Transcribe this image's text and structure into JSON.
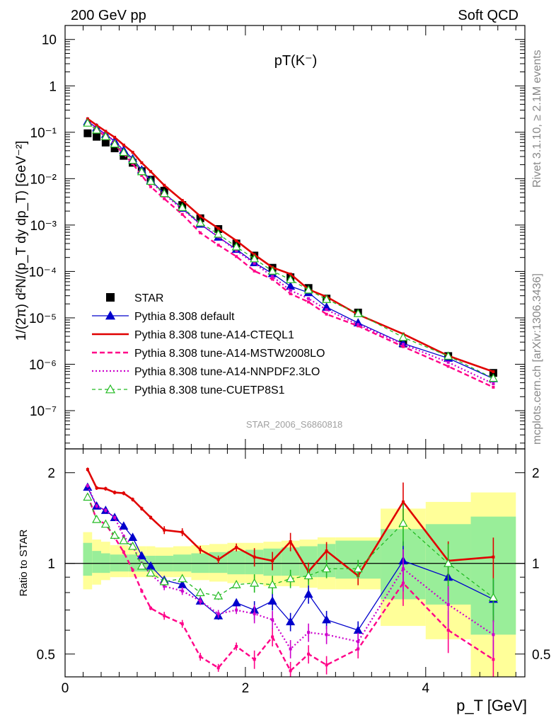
{
  "header": {
    "left": "200 GeV pp",
    "right": "Soft QCD"
  },
  "side_text": {
    "rivet": "Rivet 3.1.10, ≥ 2.1M events",
    "mcplots": "mcplots.cern.ch [arXiv:1306.3436]"
  },
  "colors": {
    "star": "#000000",
    "default": "#0000cc",
    "cteql1": "#e00000",
    "mstw": "#ff0088",
    "nnpdf": "#cc00cc",
    "cuetp8s1": "#22bb22",
    "band_outer": "#ffff99",
    "band_inner": "#99ee99"
  },
  "chart_data": [
    {
      "type": "line",
      "title": "pT(K⁻)",
      "watermark": "STAR_2006_S6860818",
      "ylabel": "1/(2π) d²N/(p_T dy dp_T) [GeV⁻²]",
      "xlabel": "",
      "yscale": "log",
      "xlim": [
        0,
        5.1
      ],
      "ylim": [
        1.5e-08,
        20
      ],
      "ytick_labels": [
        "10⁻⁷",
        "10⁻⁶",
        "10⁻⁵",
        "10⁻⁴",
        "10⁻³",
        "10⁻²",
        "10⁻¹",
        "1",
        "10"
      ],
      "legend_position": "bottom-left",
      "x": [
        0.25,
        0.35,
        0.45,
        0.55,
        0.65,
        0.75,
        0.85,
        0.95,
        1.1,
        1.3,
        1.5,
        1.7,
        1.9,
        2.1,
        2.3,
        2.5,
        2.7,
        2.9,
        3.25,
        3.75,
        4.25,
        4.75
      ],
      "series": [
        {
          "name": "STAR",
          "key": "star",
          "style": "square",
          "values": [
            0.095,
            0.08,
            0.06,
            0.045,
            0.031,
            0.022,
            0.0145,
            0.0095,
            0.0055,
            0.0027,
            0.0014,
            0.00082,
            0.0004,
            0.00022,
            0.00012,
            7.5e-05,
            4.4e-05,
            2.6e-05,
            1.3e-05,
            2.8e-06,
            1.5e-06,
            6.5e-07
          ]
        },
        {
          "name": "Pythia 8.308 default",
          "key": "default",
          "style": "line-triangle",
          "values": [
            0.17,
            0.125,
            0.09,
            0.064,
            0.041,
            0.027,
            0.0155,
            0.0092,
            0.0048,
            0.0023,
            0.00105,
            0.00055,
            0.0003,
            0.000155,
            9e-05,
            4.8e-05,
            3.5e-05,
            1.7e-05,
            7.8e-06,
            2.8e-06,
            1.35e-06,
            4.9e-07
          ]
        },
        {
          "name": "Pythia 8.308 tune-A14-CTEQL1",
          "key": "cteql1",
          "style": "line",
          "values": [
            0.195,
            0.142,
            0.105,
            0.078,
            0.053,
            0.037,
            0.022,
            0.0142,
            0.0072,
            0.0034,
            0.00155,
            0.00085,
            0.00046,
            0.00023,
            0.000122,
            8.8e-05,
            4.1e-05,
            2.85e-05,
            1.18e-05,
            4.5e-06,
            1.52e-06,
            6.9e-07
          ]
        },
        {
          "name": "Pythia 8.308 tune-A14-MSTW2008LO",
          "key": "mstw",
          "style": "dashed",
          "values": [
            0.16,
            0.112,
            0.081,
            0.055,
            0.034,
            0.021,
            0.0117,
            0.0067,
            0.0037,
            0.0017,
            0.00068,
            0.00037,
            0.00021,
            0.000102,
            6.8e-05,
            3.3e-05,
            2.2e-05,
            1.2e-05,
            6.7e-06,
            2.4e-06,
            9e-07,
            3.2e-07
          ]
        },
        {
          "name": "Pythia 8.308 tune-A14-NNPDF2.3LO",
          "key": "nnpdf",
          "style": "dotted",
          "values": [
            0.172,
            0.124,
            0.09,
            0.064,
            0.038,
            0.025,
            0.0145,
            0.0087,
            0.0046,
            0.0022,
            0.00105,
            0.00056,
            0.00028,
            0.00015,
            7.8e-05,
            3.9e-05,
            2.6e-05,
            1.5e-05,
            7.2e-06,
            2.7e-06,
            1.1e-06,
            3.8e-07
          ]
        },
        {
          "name": "Pythia 8.308 tune-CUETP8S1",
          "key": "cuetp8s1",
          "style": "dashed-open-triangle",
          "values": [
            0.158,
            0.112,
            0.081,
            0.056,
            0.037,
            0.025,
            0.0142,
            0.0088,
            0.0048,
            0.0024,
            0.00112,
            0.00064,
            0.00034,
            0.000188,
            0.000102,
            6.7e-05,
            4e-05,
            2.5e-05,
            1.24e-05,
            3.8e-06,
            1.5e-06,
            5e-07
          ]
        }
      ]
    },
    {
      "type": "line",
      "ylabel": "Ratio to STAR",
      "xlabel": "p_T [GeV]",
      "yscale": "log",
      "xlim": [
        0,
        5.1
      ],
      "ylim": [
        0.42,
        2.4
      ],
      "xtick_labels": [
        "0",
        "2",
        "4"
      ],
      "ytick_labels": [
        "0.5",
        "1",
        "2"
      ],
      "reference_line": 1,
      "bands": {
        "x_edges": [
          0.2,
          0.3,
          0.4,
          0.5,
          0.6,
          0.7,
          0.8,
          0.9,
          1.0,
          1.2,
          1.4,
          1.6,
          1.8,
          2.0,
          2.2,
          2.4,
          2.6,
          2.8,
          3.0,
          3.5,
          4.0,
          4.5,
          5.0
        ],
        "outer_low": [
          0.82,
          0.85,
          0.88,
          0.9,
          0.9,
          0.9,
          0.9,
          0.9,
          0.9,
          0.9,
          0.88,
          0.87,
          0.86,
          0.86,
          0.84,
          0.84,
          0.83,
          0.82,
          0.82,
          0.62,
          0.56,
          0.4
        ],
        "outer_high": [
          1.27,
          1.2,
          1.18,
          1.15,
          1.15,
          1.14,
          1.14,
          1.14,
          1.13,
          1.14,
          1.15,
          1.16,
          1.17,
          1.17,
          1.18,
          1.19,
          1.2,
          1.22,
          1.22,
          1.52,
          1.6,
          1.72
        ],
        "inner_low": [
          0.91,
          0.93,
          0.93,
          0.94,
          0.94,
          0.94,
          0.94,
          0.94,
          0.94,
          0.94,
          0.93,
          0.93,
          0.92,
          0.92,
          0.91,
          0.91,
          0.9,
          0.9,
          0.89,
          0.76,
          0.73,
          0.58
        ],
        "inner_high": [
          1.17,
          1.1,
          1.08,
          1.07,
          1.07,
          1.07,
          1.06,
          1.06,
          1.06,
          1.07,
          1.08,
          1.09,
          1.1,
          1.11,
          1.12,
          1.13,
          1.14,
          1.16,
          1.19,
          1.3,
          1.35,
          1.43
        ]
      },
      "x": [
        0.25,
        0.35,
        0.45,
        0.55,
        0.65,
        0.75,
        0.85,
        0.95,
        1.1,
        1.3,
        1.5,
        1.7,
        1.9,
        2.1,
        2.3,
        2.5,
        2.7,
        2.9,
        3.25,
        3.75,
        4.25,
        4.75
      ],
      "series": [
        {
          "name": "Pythia 8.308 default",
          "key": "default",
          "style": "line-triangle",
          "values": [
            1.79,
            1.55,
            1.5,
            1.42,
            1.33,
            1.22,
            1.06,
            0.98,
            0.88,
            0.85,
            0.75,
            0.67,
            0.74,
            0.7,
            0.75,
            0.64,
            0.79,
            0.65,
            0.6,
            1.02,
            0.9,
            0.76
          ]
        },
        {
          "name": "Pythia 8.308 tune-A14-CTEQL1",
          "key": "cteql1",
          "style": "line",
          "values": [
            2.05,
            1.78,
            1.77,
            1.72,
            1.71,
            1.63,
            1.52,
            1.42,
            1.29,
            1.27,
            1.11,
            1.03,
            1.13,
            1.05,
            1.02,
            1.18,
            0.94,
            1.1,
            0.91,
            1.6,
            1.02,
            1.05
          ]
        },
        {
          "name": "Pythia 8.308 tune-A14-MSTW2008LO",
          "key": "mstw",
          "style": "dashed",
          "values": [
            1.68,
            1.4,
            1.35,
            1.22,
            1.09,
            0.95,
            0.81,
            0.71,
            0.67,
            0.63,
            0.49,
            0.45,
            0.53,
            0.48,
            0.57,
            0.44,
            0.5,
            0.46,
            0.52,
            0.86,
            0.6,
            0.48
          ]
        },
        {
          "name": "Pythia 8.308 tune-A14-NNPDF2.3LO",
          "key": "nnpdf",
          "style": "dotted",
          "values": [
            1.81,
            1.55,
            1.5,
            1.42,
            1.23,
            1.14,
            1.0,
            0.92,
            0.84,
            0.81,
            0.75,
            0.68,
            0.7,
            0.68,
            0.65,
            0.52,
            0.59,
            0.58,
            0.55,
            0.96,
            0.73,
            0.58
          ]
        },
        {
          "name": "Pythia 8.308 tune-CUETP8S1",
          "key": "cuetp8s1",
          "style": "dashed-open-triangle",
          "values": [
            1.66,
            1.4,
            1.35,
            1.24,
            1.19,
            1.14,
            0.98,
            0.93,
            0.87,
            0.89,
            0.8,
            0.78,
            0.85,
            0.86,
            0.85,
            0.89,
            0.91,
            0.96,
            0.96,
            1.36,
            1.0,
            0.77
          ]
        }
      ]
    }
  ]
}
